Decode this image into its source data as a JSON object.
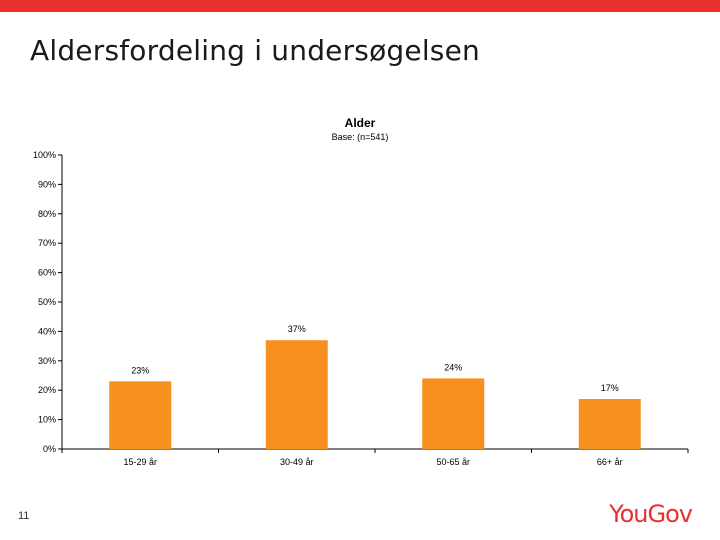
{
  "slide": {
    "title": "Aldersfordeling i undersøgelsen",
    "page_number": "11",
    "logo_text": "YouGov"
  },
  "colors": {
    "accent": "#e8312f",
    "bar": "#f7901e",
    "axis": "#000000"
  },
  "chart_data": {
    "type": "bar",
    "title": "Alder",
    "subtitle": "Base: (n=541)",
    "categories": [
      "15-29 år",
      "30-49 år",
      "50-65 år",
      "66+ år"
    ],
    "values": [
      23,
      37,
      24,
      17
    ],
    "value_labels": [
      "23%",
      "37%",
      "24%",
      "17%"
    ],
    "ylim": [
      0,
      100
    ],
    "yticks": [
      0,
      10,
      20,
      30,
      40,
      50,
      60,
      70,
      80,
      90,
      100
    ],
    "ytick_labels": [
      "0%",
      "10%",
      "20%",
      "30%",
      "40%",
      "50%",
      "60%",
      "70%",
      "80%",
      "90%",
      "100%"
    ],
    "grid": false,
    "legend": "none"
  }
}
